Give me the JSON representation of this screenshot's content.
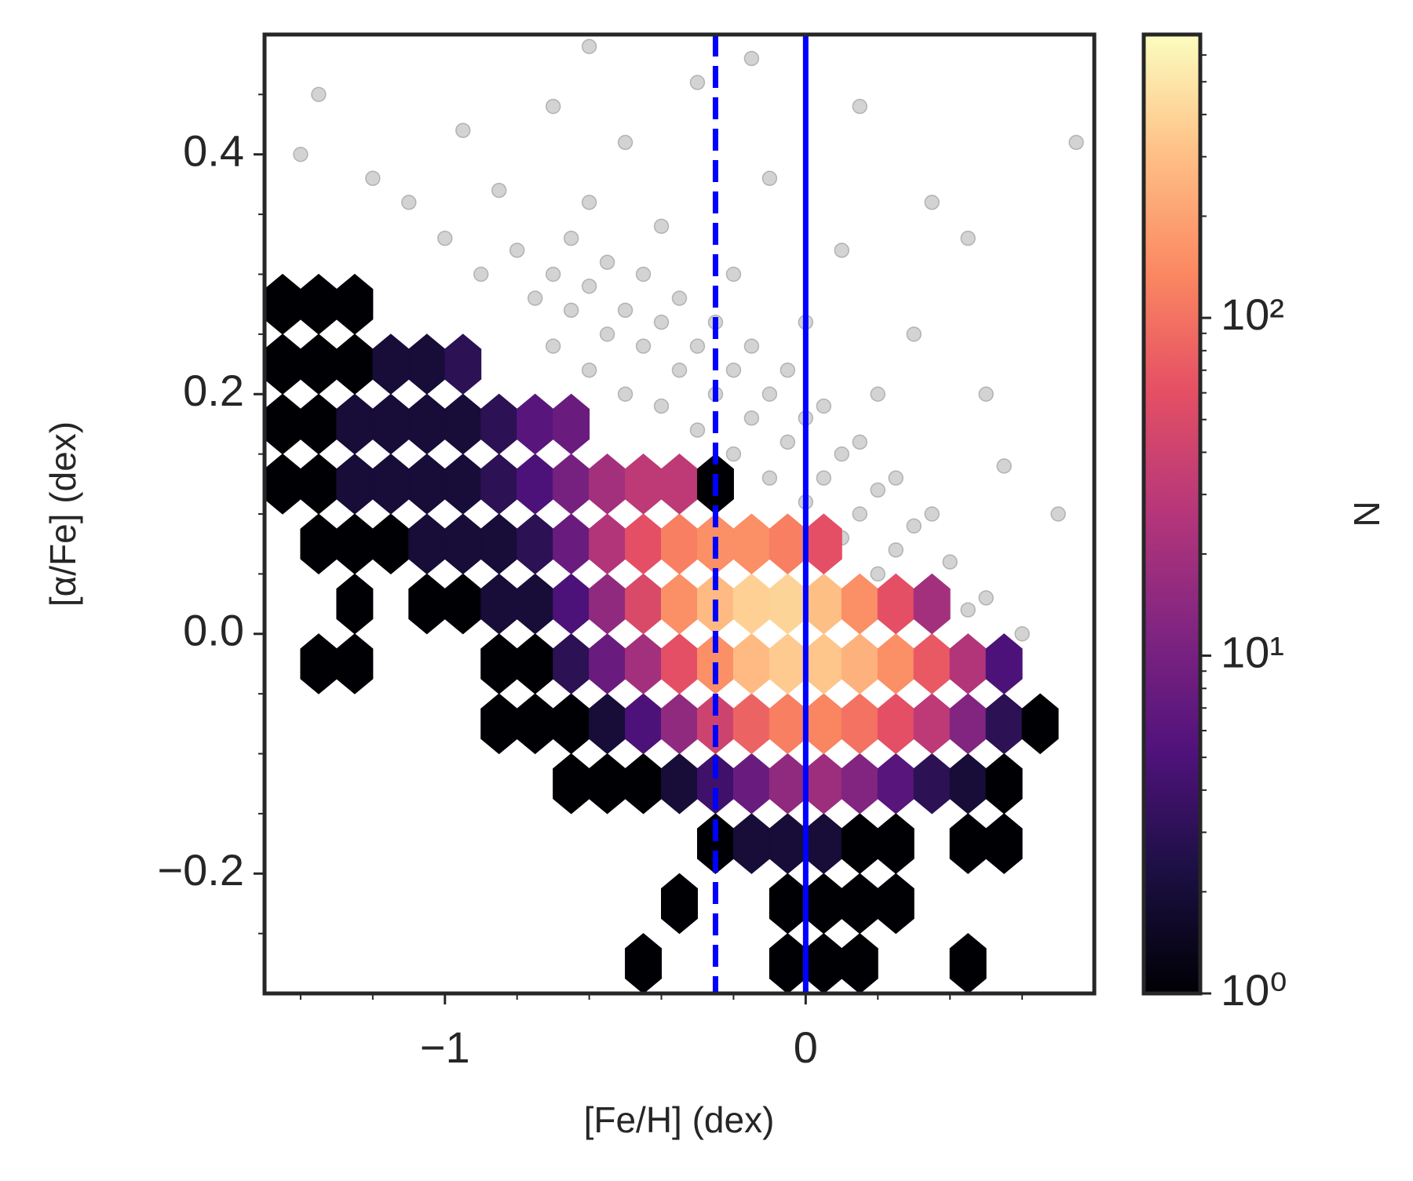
{
  "chart_data": {
    "type": "hexbin",
    "x_label": "[Fe/H] (dex)",
    "y_label": "[α/Fe] (dex)",
    "colorbar_label": "N",
    "xlim": [
      -1.5,
      0.8
    ],
    "ylim": [
      -0.3,
      0.5
    ],
    "xticks": [
      {
        "value": -1,
        "label": "−1"
      },
      0
    ],
    "yticks": [
      {
        "value": -0.2,
        "label": "−0.2"
      },
      {
        "value": 0,
        "label": "0.0"
      },
      0.2,
      0.4
    ],
    "xminorticks": [
      -1.4,
      -1.2,
      -0.8,
      -0.6,
      -0.4,
      -0.2,
      0.2,
      0.4,
      0.6
    ],
    "yminorticks": [
      -0.25,
      -0.15,
      -0.1,
      -0.05,
      0.05,
      0.1,
      0.15,
      0.25,
      0.3,
      0.35,
      0.45
    ],
    "colormap": "magma",
    "clim": [
      1,
      690
    ],
    "clog": true,
    "cticks": [
      {
        "value": 1,
        "label": "10⁰"
      },
      {
        "value": 10,
        "label": "10¹"
      },
      {
        "value": 100,
        "label": "10²"
      }
    ],
    "cminorticks": [
      2,
      3,
      4,
      5,
      6,
      7,
      8,
      9,
      20,
      30,
      40,
      50,
      60,
      70,
      80,
      90,
      200,
      300,
      400,
      500,
      600
    ],
    "vlines": [
      {
        "x": -0.25,
        "color": "#0000ff",
        "style": "dashed"
      },
      {
        "x": 0,
        "color": "#0000ff",
        "style": "solid"
      }
    ],
    "scatter": {
      "color": "#808080",
      "x": [
        -0.75,
        -0.7,
        -0.65,
        -0.6,
        -0.55,
        -0.5,
        -0.45,
        -0.4,
        -0.35,
        -0.3,
        -0.25,
        -0.2,
        -0.15,
        -0.1,
        -0.05,
        0,
        0.05,
        0.1,
        0.15,
        0.2,
        0.25,
        0.3,
        0.35,
        0.4,
        0.45,
        0.5,
        -0.7,
        -0.6,
        -0.5,
        -0.4,
        -0.3,
        -0.2,
        -0.1,
        0,
        0.1,
        0.2,
        0.3,
        -0.65,
        -0.55,
        -0.45,
        -0.35,
        -0.25,
        -0.15,
        -0.05,
        0.05,
        0.15,
        0.25,
        0.35,
        -0.8,
        -0.9,
        -1.0,
        -0.6,
        -0.4,
        -0.2,
        0,
        0.2,
        -0.85,
        -1.1,
        -1.2,
        -0.95,
        -0.7,
        -0.5,
        -0.3,
        -0.1,
        0.1,
        0.3,
        0.5,
        -1.35,
        -1.4,
        -0.6,
        0.15,
        0.35,
        0.55,
        0.7,
        0.75,
        0.6,
        0.45,
        -0.15
      ],
      "y": [
        0.28,
        0.3,
        0.27,
        0.29,
        0.25,
        0.27,
        0.24,
        0.26,
        0.22,
        0.24,
        0.2,
        0.22,
        0.18,
        0.2,
        0.16,
        0.18,
        0.13,
        0.15,
        0.1,
        0.12,
        0.07,
        0.09,
        0.04,
        0.06,
        0.02,
        0.03,
        0.24,
        0.22,
        0.2,
        0.19,
        0.17,
        0.15,
        0.13,
        0.11,
        0.08,
        0.05,
        0.03,
        0.33,
        0.31,
        0.3,
        0.28,
        0.26,
        0.24,
        0.22,
        0.19,
        0.16,
        0.13,
        0.1,
        0.32,
        0.3,
        0.33,
        0.36,
        0.34,
        0.3,
        0.26,
        0.2,
        0.37,
        0.36,
        0.38,
        0.42,
        0.44,
        0.41,
        0.46,
        0.38,
        0.32,
        0.25,
        0.2,
        0.45,
        0.4,
        0.49,
        0.44,
        0.36,
        0.14,
        0.1,
        0.41,
        0,
        0.33,
        0.48
      ]
    },
    "hexbin": {
      "x": [
        -1.45,
        -1.35,
        -1.25,
        -1.15,
        -1.05,
        -0.95,
        -0.85,
        -0.75,
        -0.65,
        -0.55,
        -0.45,
        -0.35,
        -0.25,
        -0.15,
        -0.05,
        0.05,
        0.15,
        0.25,
        0.35,
        0.45,
        0.55,
        0.65
      ],
      "y": [
        -0.275,
        -0.225,
        -0.175,
        -0.125,
        -0.075,
        -0.025,
        0.025,
        0.075,
        0.125,
        0.175,
        0.225,
        0.275
      ],
      "counts": [
        [
          null,
          null,
          null,
          null,
          null,
          null,
          null,
          null,
          null,
          null,
          1,
          null,
          null,
          null,
          1,
          1,
          1,
          null,
          null,
          1,
          null,
          null
        ],
        [
          null,
          null,
          null,
          null,
          null,
          null,
          null,
          null,
          null,
          null,
          null,
          1,
          null,
          null,
          1,
          1,
          1,
          1,
          null,
          null,
          null,
          null
        ],
        [
          null,
          null,
          null,
          null,
          null,
          null,
          null,
          null,
          null,
          null,
          null,
          null,
          1,
          2,
          2,
          2,
          1,
          1,
          null,
          1,
          1,
          null
        ],
        [
          null,
          null,
          null,
          null,
          null,
          null,
          null,
          null,
          1,
          1,
          1,
          2,
          4,
          8,
          15,
          18,
          12,
          6,
          3,
          2,
          1,
          null
        ],
        [
          null,
          null,
          null,
          null,
          null,
          null,
          1,
          1,
          1,
          2,
          5,
          15,
          40,
          80,
          120,
          130,
          100,
          60,
          30,
          12,
          3,
          1
        ],
        [
          null,
          1,
          1,
          null,
          null,
          null,
          1,
          1,
          3,
          8,
          20,
          60,
          150,
          280,
          350,
          330,
          250,
          150,
          70,
          25,
          5,
          null
        ],
        [
          null,
          null,
          1,
          null,
          1,
          1,
          2,
          2,
          5,
          15,
          50,
          150,
          280,
          380,
          400,
          300,
          150,
          60,
          20,
          null,
          null,
          null
        ],
        [
          null,
          1,
          1,
          1,
          2,
          2,
          2,
          3,
          8,
          25,
          60,
          120,
          150,
          150,
          120,
          60,
          null,
          null,
          null,
          null,
          null,
          null
        ],
        [
          1,
          1,
          2,
          2,
          2,
          2,
          3,
          5,
          10,
          20,
          30,
          30,
          1,
          null,
          null,
          null,
          null,
          null,
          null,
          null,
          null,
          null
        ],
        [
          1,
          1,
          2,
          2,
          2,
          2,
          3,
          6,
          8,
          null,
          null,
          null,
          null,
          null,
          null,
          null,
          null,
          null,
          null,
          null,
          null,
          null
        ],
        [
          1,
          1,
          1,
          2,
          2,
          3,
          null,
          null,
          null,
          null,
          null,
          null,
          null,
          null,
          null,
          null,
          null,
          null,
          null,
          null,
          null,
          null
        ],
        [
          1,
          1,
          1,
          null,
          null,
          null,
          null,
          null,
          null,
          null,
          null,
          null,
          null,
          null,
          null,
          null,
          null,
          null,
          null,
          null,
          null,
          null
        ]
      ]
    }
  }
}
